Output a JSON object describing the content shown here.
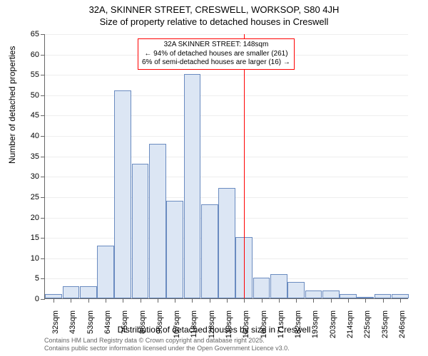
{
  "title": {
    "line1": "32A, SKINNER STREET, CRESWELL, WORKSOP, S80 4JH",
    "line2": "Size of property relative to detached houses in Creswell",
    "fontsize": 13,
    "color": "#000000"
  },
  "chart": {
    "type": "histogram",
    "background_color": "#ffffff",
    "bar_fill": "#dce6f4",
    "bar_border": "#6a8bc0",
    "grid_color": "#eeeeee",
    "axis_color": "#666666",
    "ylabel": "Number of detached properties",
    "xlabel": "Distribution of detached houses by size in Creswell",
    "label_fontsize": 12,
    "tick_fontsize": 11,
    "ylim": [
      0,
      65
    ],
    "ytick_step": 5,
    "x_categories": [
      "32sqm",
      "43sqm",
      "53sqm",
      "64sqm",
      "75sqm",
      "86sqm",
      "96sqm",
      "107sqm",
      "118sqm",
      "128sqm",
      "139sqm",
      "150sqm",
      "160sqm",
      "171sqm",
      "182sqm",
      "193sqm",
      "203sqm",
      "214sqm",
      "225sqm",
      "235sqm",
      "246sqm"
    ],
    "values": [
      1,
      3,
      3,
      13,
      51,
      33,
      38,
      24,
      55,
      23,
      27,
      15,
      5,
      6,
      4,
      2,
      2,
      1,
      0,
      1,
      1
    ],
    "marker": {
      "index": 11,
      "color": "#ff0000",
      "width": 1.5
    },
    "annotation": {
      "line1": "32A SKINNER STREET: 148sqm",
      "line2": "← 94% of detached houses are smaller (261)",
      "line3": "6% of semi-detached houses are larger (16) →",
      "border_color": "#ff0000",
      "background": "#ffffff",
      "fontsize": 10
    }
  },
  "footer": {
    "line1": "Contains HM Land Registry data © Crown copyright and database right 2025.",
    "line2": "Contains public sector information licensed under the Open Government Licence v3.0.",
    "fontsize": 9,
    "color": "#666666"
  }
}
